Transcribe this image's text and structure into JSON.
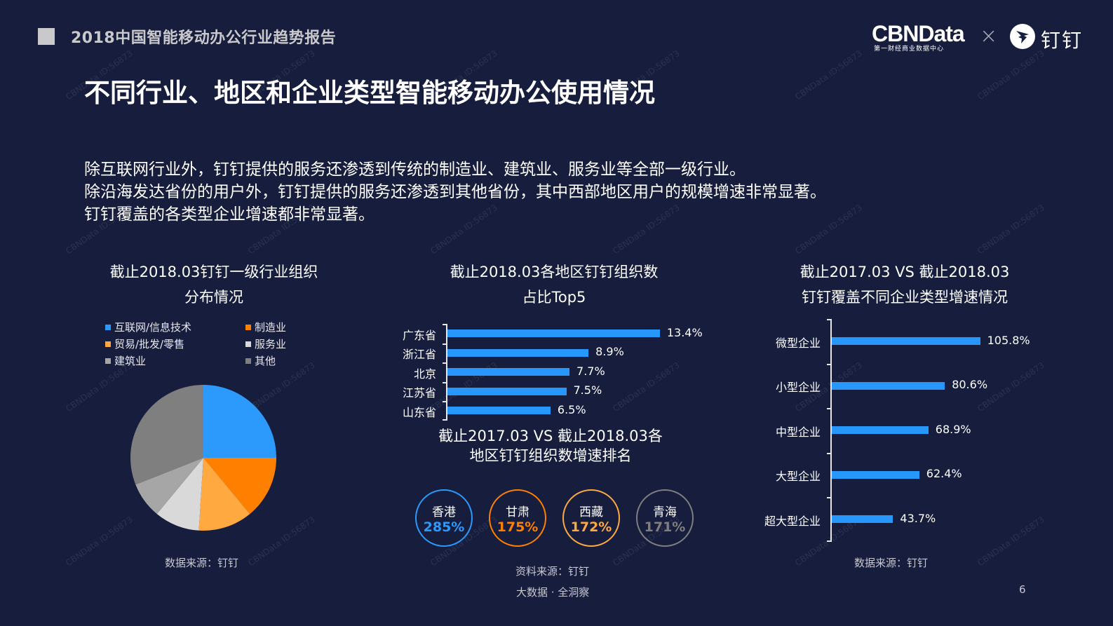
{
  "header": {
    "report_title": "2018中国智能移动办公行业趋势报告",
    "logo_cbn": "CBNData",
    "logo_cbn_sub": "第一财经商业数据中心",
    "logo_separator": "×",
    "logo_dingtalk": "钉钉"
  },
  "page_title": "不同行业、地区和企业类型智能移动办公使用情况",
  "intro": [
    "除互联网行业外，钉钉提供的服务还渗透到传统的制造业、建筑业、服务业等全部一级行业。",
    "除沿海发达省份的用户外，钉钉提供的服务还渗透到其他省份，其中西部地区用户的规模增速非常显著。",
    "钉钉覆盖的各类型企业增速都非常显著。"
  ],
  "watermark": "CBNData ID:56873",
  "chart_data": [
    {
      "type": "pie",
      "title": "截止2018.03钉钉一级行业组织分布情况",
      "title_lines": [
        "截止2018.03钉钉一级行业组织",
        "分布情况"
      ],
      "categories": [
        "互联网/信息技术",
        "制造业",
        "贸易/批发/零售",
        "服务业",
        "建筑业",
        "其他"
      ],
      "values": [
        25,
        14,
        12,
        10,
        8,
        31
      ],
      "colors": [
        "#2c9afc",
        "#ff8000",
        "#ffa940",
        "#d9d9d9",
        "#a6a6a6",
        "#7f7f7f"
      ],
      "legend_position": "top",
      "source": "数据来源：钉钉"
    },
    {
      "type": "bar",
      "orientation": "horizontal",
      "title": "截止2018.03各地区钉钉组织数占比Top5",
      "title_lines": [
        "截止2018.03各地区钉钉组织数",
        "占比Top5"
      ],
      "categories": [
        "广东省",
        "浙江省",
        "北京",
        "江苏省",
        "山东省"
      ],
      "values": [
        13.4,
        8.9,
        7.7,
        7.5,
        6.5
      ],
      "labels": [
        "13.4%",
        "8.9%",
        "7.7%",
        "7.5%",
        "6.5%"
      ],
      "unit": "%",
      "color": "#2797fb",
      "grid": false
    },
    {
      "type": "table",
      "title": "截止2017.03 VS 截止2018.03各地区钉钉组织数增速排名",
      "title_lines": [
        "截止2017.03 VS 截止2018.03各",
        "地区钉钉组织数增速排名"
      ],
      "categories": [
        "香港",
        "甘肃",
        "西藏",
        "青海"
      ],
      "values": [
        285,
        175,
        172,
        171
      ],
      "labels": [
        "285%",
        "175%",
        "172%",
        "171%"
      ],
      "colors": [
        "#2c9afc",
        "#ff8000",
        "#ffa940",
        "#7f7f7f"
      ],
      "source": "资料来源：钉钉"
    },
    {
      "type": "bar",
      "orientation": "horizontal",
      "title": "截止2017.03 VS 截止2018.03钉钉覆盖不同企业类型增速情况",
      "title_lines": [
        "截止2017.03 VS 截止2018.03",
        "钉钉覆盖不同企业类型增速情况"
      ],
      "categories": [
        "微型企业",
        "小型企业",
        "中型企业",
        "大型企业",
        "超大型企业"
      ],
      "values": [
        105.8,
        80.6,
        68.9,
        62.4,
        43.7
      ],
      "labels": [
        "105.8%",
        "80.6%",
        "68.9%",
        "62.4%",
        "43.7%"
      ],
      "unit": "%",
      "color": "#2797fb",
      "grid": false,
      "source": "数据来源：钉钉"
    }
  ],
  "footer": {
    "tagline": "大数据 · 全洞察",
    "page_number": "6"
  }
}
